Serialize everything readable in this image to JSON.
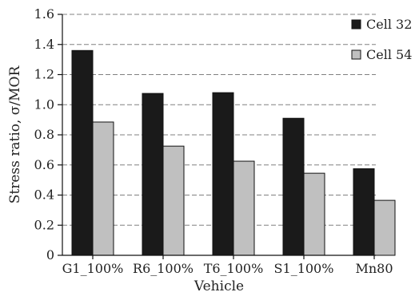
{
  "chart_data": {
    "type": "bar",
    "categories": [
      "G1_100%",
      "R6_100%",
      "T6_100%",
      "S1_100%",
      "Mn80"
    ],
    "series": [
      {
        "name": "Cell 32",
        "values": [
          1.36,
          1.075,
          1.08,
          0.91,
          0.575
        ],
        "color": "#1a1a1a"
      },
      {
        "name": "Cell 54",
        "values": [
          0.885,
          0.725,
          0.625,
          0.545,
          0.365
        ],
        "color": "#c0c0c0"
      }
    ],
    "title": "",
    "xlabel": "Vehicle",
    "ylabel": "Stress ratio, σ/MOR",
    "ylim": [
      0,
      1.6
    ],
    "yticks": [
      "0",
      "0.2",
      "0.4",
      "0.6",
      "0.8",
      "1.0",
      "1.2",
      "1.4",
      "1.6"
    ],
    "grid": true,
    "legend_position": "top-right"
  }
}
